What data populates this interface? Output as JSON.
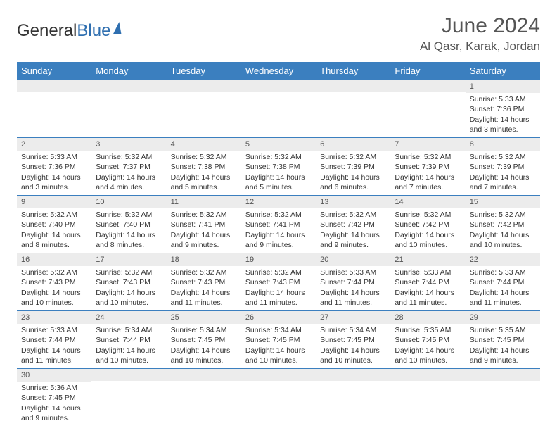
{
  "logo": {
    "part1": "General",
    "part2": "Blue"
  },
  "header": {
    "month": "June 2024",
    "location": "Al Qasr, Karak, Jordan"
  },
  "weekdays": [
    "Sunday",
    "Monday",
    "Tuesday",
    "Wednesday",
    "Thursday",
    "Friday",
    "Saturday"
  ],
  "colors": {
    "header_bg": "#3b7fbf",
    "daynum_bg": "#ececec",
    "logo_blue": "#2f6fb0"
  },
  "days": {
    "1": {
      "sunrise": "Sunrise: 5:33 AM",
      "sunset": "Sunset: 7:36 PM",
      "daylight": "Daylight: 14 hours and 3 minutes."
    },
    "2": {
      "sunrise": "Sunrise: 5:33 AM",
      "sunset": "Sunset: 7:36 PM",
      "daylight": "Daylight: 14 hours and 3 minutes."
    },
    "3": {
      "sunrise": "Sunrise: 5:32 AM",
      "sunset": "Sunset: 7:37 PM",
      "daylight": "Daylight: 14 hours and 4 minutes."
    },
    "4": {
      "sunrise": "Sunrise: 5:32 AM",
      "sunset": "Sunset: 7:38 PM",
      "daylight": "Daylight: 14 hours and 5 minutes."
    },
    "5": {
      "sunrise": "Sunrise: 5:32 AM",
      "sunset": "Sunset: 7:38 PM",
      "daylight": "Daylight: 14 hours and 5 minutes."
    },
    "6": {
      "sunrise": "Sunrise: 5:32 AM",
      "sunset": "Sunset: 7:39 PM",
      "daylight": "Daylight: 14 hours and 6 minutes."
    },
    "7": {
      "sunrise": "Sunrise: 5:32 AM",
      "sunset": "Sunset: 7:39 PM",
      "daylight": "Daylight: 14 hours and 7 minutes."
    },
    "8": {
      "sunrise": "Sunrise: 5:32 AM",
      "sunset": "Sunset: 7:39 PM",
      "daylight": "Daylight: 14 hours and 7 minutes."
    },
    "9": {
      "sunrise": "Sunrise: 5:32 AM",
      "sunset": "Sunset: 7:40 PM",
      "daylight": "Daylight: 14 hours and 8 minutes."
    },
    "10": {
      "sunrise": "Sunrise: 5:32 AM",
      "sunset": "Sunset: 7:40 PM",
      "daylight": "Daylight: 14 hours and 8 minutes."
    },
    "11": {
      "sunrise": "Sunrise: 5:32 AM",
      "sunset": "Sunset: 7:41 PM",
      "daylight": "Daylight: 14 hours and 9 minutes."
    },
    "12": {
      "sunrise": "Sunrise: 5:32 AM",
      "sunset": "Sunset: 7:41 PM",
      "daylight": "Daylight: 14 hours and 9 minutes."
    },
    "13": {
      "sunrise": "Sunrise: 5:32 AM",
      "sunset": "Sunset: 7:42 PM",
      "daylight": "Daylight: 14 hours and 9 minutes."
    },
    "14": {
      "sunrise": "Sunrise: 5:32 AM",
      "sunset": "Sunset: 7:42 PM",
      "daylight": "Daylight: 14 hours and 10 minutes."
    },
    "15": {
      "sunrise": "Sunrise: 5:32 AM",
      "sunset": "Sunset: 7:42 PM",
      "daylight": "Daylight: 14 hours and 10 minutes."
    },
    "16": {
      "sunrise": "Sunrise: 5:32 AM",
      "sunset": "Sunset: 7:43 PM",
      "daylight": "Daylight: 14 hours and 10 minutes."
    },
    "17": {
      "sunrise": "Sunrise: 5:32 AM",
      "sunset": "Sunset: 7:43 PM",
      "daylight": "Daylight: 14 hours and 10 minutes."
    },
    "18": {
      "sunrise": "Sunrise: 5:32 AM",
      "sunset": "Sunset: 7:43 PM",
      "daylight": "Daylight: 14 hours and 11 minutes."
    },
    "19": {
      "sunrise": "Sunrise: 5:32 AM",
      "sunset": "Sunset: 7:43 PM",
      "daylight": "Daylight: 14 hours and 11 minutes."
    },
    "20": {
      "sunrise": "Sunrise: 5:33 AM",
      "sunset": "Sunset: 7:44 PM",
      "daylight": "Daylight: 14 hours and 11 minutes."
    },
    "21": {
      "sunrise": "Sunrise: 5:33 AM",
      "sunset": "Sunset: 7:44 PM",
      "daylight": "Daylight: 14 hours and 11 minutes."
    },
    "22": {
      "sunrise": "Sunrise: 5:33 AM",
      "sunset": "Sunset: 7:44 PM",
      "daylight": "Daylight: 14 hours and 11 minutes."
    },
    "23": {
      "sunrise": "Sunrise: 5:33 AM",
      "sunset": "Sunset: 7:44 PM",
      "daylight": "Daylight: 14 hours and 11 minutes."
    },
    "24": {
      "sunrise": "Sunrise: 5:34 AM",
      "sunset": "Sunset: 7:44 PM",
      "daylight": "Daylight: 14 hours and 10 minutes."
    },
    "25": {
      "sunrise": "Sunrise: 5:34 AM",
      "sunset": "Sunset: 7:45 PM",
      "daylight": "Daylight: 14 hours and 10 minutes."
    },
    "26": {
      "sunrise": "Sunrise: 5:34 AM",
      "sunset": "Sunset: 7:45 PM",
      "daylight": "Daylight: 14 hours and 10 minutes."
    },
    "27": {
      "sunrise": "Sunrise: 5:34 AM",
      "sunset": "Sunset: 7:45 PM",
      "daylight": "Daylight: 14 hours and 10 minutes."
    },
    "28": {
      "sunrise": "Sunrise: 5:35 AM",
      "sunset": "Sunset: 7:45 PM",
      "daylight": "Daylight: 14 hours and 10 minutes."
    },
    "29": {
      "sunrise": "Sunrise: 5:35 AM",
      "sunset": "Sunset: 7:45 PM",
      "daylight": "Daylight: 14 hours and 9 minutes."
    },
    "30": {
      "sunrise": "Sunrise: 5:36 AM",
      "sunset": "Sunset: 7:45 PM",
      "daylight": "Daylight: 14 hours and 9 minutes."
    }
  },
  "grid": [
    [
      null,
      null,
      null,
      null,
      null,
      null,
      "1"
    ],
    [
      "2",
      "3",
      "4",
      "5",
      "6",
      "7",
      "8"
    ],
    [
      "9",
      "10",
      "11",
      "12",
      "13",
      "14",
      "15"
    ],
    [
      "16",
      "17",
      "18",
      "19",
      "20",
      "21",
      "22"
    ],
    [
      "23",
      "24",
      "25",
      "26",
      "27",
      "28",
      "29"
    ],
    [
      "30",
      null,
      null,
      null,
      null,
      null,
      null
    ]
  ]
}
